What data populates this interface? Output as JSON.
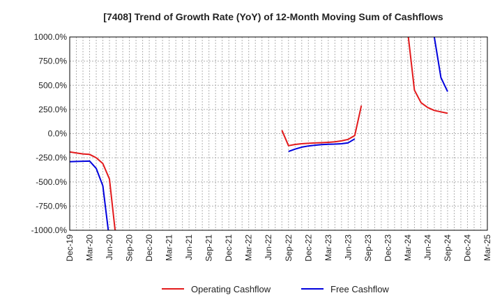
{
  "chart_data": {
    "type": "line",
    "title": "[7408]  Trend of Growth Rate (YoY) of 12-Month Moving Sum of Cashflows",
    "xlabel": "",
    "ylabel": "",
    "ylim": [
      -1000,
      1000
    ],
    "y_ticks": [
      "1000.0%",
      "750.0%",
      "500.0%",
      "250.0%",
      "0.0%",
      "-250.0%",
      "-500.0%",
      "-750.0%",
      "-1000.0%"
    ],
    "y_tick_values": [
      1000,
      750,
      500,
      250,
      0,
      -250,
      -500,
      -750,
      -1000
    ],
    "x_ticks": [
      "Dec-19",
      "Mar-20",
      "Jun-20",
      "Sep-20",
      "Dec-20",
      "Mar-21",
      "Jun-21",
      "Sep-21",
      "Dec-21",
      "Mar-22",
      "Jun-22",
      "Sep-22",
      "Dec-22",
      "Mar-23",
      "Jun-23",
      "Sep-23",
      "Dec-23",
      "Mar-24",
      "Jun-24",
      "Sep-24",
      "Dec-24",
      "Mar-25"
    ],
    "grid": true,
    "legend_position": "bottom",
    "series": [
      {
        "name": "Operating Cashflow",
        "color": "#e31a1c",
        "points": [
          [
            "Dec-19",
            -190
          ],
          [
            "Jan-20",
            -200
          ],
          [
            "Feb-20",
            -210
          ],
          [
            "Mar-20",
            -215
          ],
          [
            "Apr-20",
            -250
          ],
          [
            "May-20",
            -310
          ],
          [
            "Jun-20",
            -470
          ],
          [
            "Jul-20",
            -1100
          ],
          null,
          [
            "Aug-22",
            35
          ],
          [
            "Sep-22",
            -125
          ],
          [
            "Oct-22",
            -112
          ],
          [
            "Nov-22",
            -105
          ],
          [
            "Dec-22",
            -100
          ],
          [
            "Jan-23",
            -97
          ],
          [
            "Feb-23",
            -94
          ],
          [
            "Mar-23",
            -90
          ],
          [
            "Apr-23",
            -85
          ],
          [
            "May-23",
            -75
          ],
          [
            "Jun-23",
            -60
          ],
          [
            "Jul-23",
            -20
          ],
          [
            "Aug-23",
            290
          ],
          null,
          [
            "Feb-24",
            1100
          ],
          [
            "Mar-24",
            1050
          ],
          [
            "Apr-24",
            450
          ],
          [
            "May-24",
            320
          ],
          [
            "Jun-24",
            270
          ],
          [
            "Jul-24",
            240
          ],
          [
            "Aug-24",
            225
          ],
          [
            "Sep-24",
            210
          ]
        ]
      },
      {
        "name": "Free Cashflow",
        "color": "#0000dd",
        "points": [
          [
            "Dec-19",
            -290
          ],
          [
            "Jan-20",
            -288
          ],
          [
            "Feb-20",
            -286
          ],
          [
            "Mar-20",
            -284
          ],
          [
            "Apr-20",
            -360
          ],
          [
            "May-20",
            -540
          ],
          [
            "Jun-20",
            -1100
          ],
          null,
          [
            "Sep-22",
            -185
          ],
          [
            "Oct-22",
            -160
          ],
          [
            "Nov-22",
            -140
          ],
          [
            "Dec-22",
            -128
          ],
          [
            "Jan-23",
            -120
          ],
          [
            "Feb-23",
            -114
          ],
          [
            "Mar-23",
            -110
          ],
          [
            "Apr-23",
            -108
          ],
          [
            "May-23",
            -105
          ],
          [
            "Jun-23",
            -95
          ],
          [
            "Jul-23",
            -55
          ],
          null,
          [
            "Jun-24",
            1100
          ],
          [
            "Jul-24",
            1000
          ],
          [
            "Aug-24",
            580
          ],
          [
            "Sep-24",
            435
          ]
        ]
      }
    ]
  }
}
